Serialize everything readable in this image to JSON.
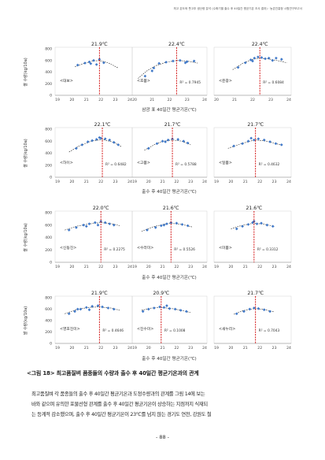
{
  "page_header": "최고 온도와 풋고추 생산량 분석 (수확기별 출수 후 40일간 평균기온 조사 결과) · 농촌진흥청 시험연구보고서",
  "caption": "<그림 18> 최고품질벼 품종들의 수량과 출수 후 40일간 평균기온과의 관계",
  "paragraph_lines": [
    "최고품질벼 각 품종들의 출수 후 40일간 평균기온과 도정수량과의 관계를 그림 14에 보는",
    "바와 같으며 유의한 포물선형 관계를 출수 후 40일간 평균기온이 상승하는 지점까지 식재되",
    "는 등계적 감소했으며, 출수 후 40일간 평균기온이 23℃를 넘지 않는 경기도 연천, 강원도 철"
  ],
  "page_number": "- 88 -",
  "colors": {
    "points": "#3f78c8",
    "trend": "#222222",
    "optimum_line": "#d00000",
    "box": "#c8c8c8"
  },
  "rows": [
    {
      "ylabel": "쌀 수량(kg/10a)",
      "row_title": "삼광 표 40일간 평균기온(℃)",
      "ylim": [
        0,
        800
      ],
      "yticks": [
        0,
        200,
        400,
        600,
        800
      ],
      "panels": [
        {
          "xlim": [
            19,
            24
          ],
          "xticks": [
            19,
            20,
            21,
            22,
            23,
            24
          ],
          "opt_label": "21.9℃",
          "opt": 21.9,
          "variety": "<대보>",
          "r2": "",
          "points": [
            [
              20.4,
              520
            ],
            [
              20.9,
              555
            ],
            [
              21.2,
              575
            ],
            [
              21.5,
              600
            ],
            [
              21.9,
              620
            ],
            [
              22.2,
              560
            ],
            [
              21.7,
              530
            ],
            [
              21.3,
              545
            ]
          ],
          "curve": [
            [
              20.2,
              490
            ],
            [
              20.8,
              545
            ],
            [
              21.4,
              590
            ],
            [
              21.9,
              600
            ],
            [
              22.5,
              560
            ],
            [
              23.2,
              470
            ]
          ]
        },
        {
          "xlim": [
            20,
            24
          ],
          "xticks": [
            20,
            21,
            22,
            23,
            24
          ],
          "opt_label": "22.4℃",
          "opt": 22.4,
          "variety": "<호품>",
          "r2": "R² = 0.7945",
          "points": [
            [
              20.6,
              330
            ],
            [
              21.1,
              470
            ],
            [
              21.4,
              550
            ],
            [
              21.8,
              570
            ],
            [
              22.2,
              590
            ],
            [
              22.6,
              600
            ],
            [
              23.0,
              580
            ],
            [
              22.9,
              560
            ],
            [
              23.4,
              590
            ],
            [
              21.0,
              420
            ]
          ],
          "curve": [
            [
              20.2,
              290
            ],
            [
              20.7,
              420
            ],
            [
              21.2,
              510
            ],
            [
              21.8,
              570
            ],
            [
              22.4,
              600
            ],
            [
              23.0,
              590
            ],
            [
              23.6,
              555
            ]
          ]
        },
        {
          "xlim": [
            20,
            24
          ],
          "xticks": [
            20,
            21,
            22,
            23,
            24
          ],
          "opt_label": "22.4℃",
          "opt": 22.4,
          "variety": "<운광>",
          "r2": "R² = 0.6084",
          "points": [
            [
              21.2,
              480
            ],
            [
              21.6,
              560
            ],
            [
              21.9,
              610
            ],
            [
              22.1,
              640
            ],
            [
              22.3,
              660
            ],
            [
              22.5,
              650
            ],
            [
              22.7,
              630
            ],
            [
              22.9,
              640
            ],
            [
              23.1,
              600
            ],
            [
              23.3,
              640
            ],
            [
              23.6,
              620
            ],
            [
              22.0,
              590
            ]
          ],
          "curve": [
            [
              20.9,
              440
            ],
            [
              21.5,
              560
            ],
            [
              22.0,
              620
            ],
            [
              22.4,
              640
            ],
            [
              22.9,
              625
            ],
            [
              23.5,
              590
            ],
            [
              23.9,
              560
            ]
          ]
        }
      ]
    },
    {
      "ylabel": "쌀 수량(kg/10a)",
      "row_title": "출수 후 40일간 평균기온(℃)",
      "ylim": [
        0,
        800
      ],
      "yticks": [
        0,
        200,
        400,
        600,
        800
      ],
      "panels": [
        {
          "xlim": [
            19,
            24
          ],
          "xticks": [
            19,
            20,
            21,
            22,
            23,
            24
          ],
          "opt_label": "22.1℃",
          "opt": 22.1,
          "variety": "<하이>",
          "r2": "R² = 0.6482",
          "points": [
            [
              20.3,
              480
            ],
            [
              20.7,
              540
            ],
            [
              21.1,
              590
            ],
            [
              21.4,
              610
            ],
            [
              21.7,
              630
            ],
            [
              22.0,
              650
            ],
            [
              22.3,
              640
            ],
            [
              22.6,
              620
            ],
            [
              22.9,
              580
            ],
            [
              23.2,
              540
            ],
            [
              21.9,
              660
            ]
          ],
          "curve": [
            [
              19.8,
              420
            ],
            [
              20.5,
              520
            ],
            [
              21.3,
              600
            ],
            [
              22.1,
              630
            ],
            [
              22.9,
              580
            ],
            [
              23.4,
              510
            ]
          ]
        },
        {
          "xlim": [
            19,
            24
          ],
          "xticks": [
            19,
            20,
            21,
            22,
            23,
            24
          ],
          "opt_label": "21.7℃",
          "opt": 21.7,
          "variety": "<고품>",
          "r2": "R² = 0.5788",
          "points": [
            [
              20.0,
              480
            ],
            [
              20.6,
              560
            ],
            [
              21.0,
              600
            ],
            [
              21.4,
              620
            ],
            [
              21.7,
              640
            ],
            [
              22.1,
              630
            ],
            [
              22.5,
              600
            ],
            [
              22.8,
              570
            ],
            [
              21.2,
              590
            ]
          ],
          "curve": [
            [
              19.7,
              450
            ],
            [
              20.4,
              540
            ],
            [
              21.0,
              600
            ],
            [
              21.7,
              620
            ],
            [
              22.4,
              600
            ],
            [
              23.0,
              540
            ]
          ]
        },
        {
          "xlim": [
            19,
            24
          ],
          "xticks": [
            19,
            20,
            21,
            22,
            23,
            24
          ],
          "opt_label": "21.7℃",
          "opt": 21.7,
          "variety": "<일품>",
          "r2": "R² = 0.4632",
          "points": [
            [
              20.2,
              520
            ],
            [
              20.8,
              560
            ],
            [
              21.2,
              600
            ],
            [
              21.6,
              620
            ],
            [
              21.9,
              640
            ],
            [
              22.3,
              620
            ],
            [
              22.7,
              590
            ],
            [
              23.1,
              560
            ],
            [
              23.5,
              540
            ],
            [
              21.4,
              650
            ]
          ],
          "curve": [
            [
              19.8,
              480
            ],
            [
              20.6,
              550
            ],
            [
              21.3,
              600
            ],
            [
              21.7,
              620
            ],
            [
              22.5,
              600
            ],
            [
              23.4,
              540
            ]
          ]
        }
      ]
    },
    {
      "ylabel": "쌀 수량(kg/10a)",
      "row_title": "출수 후 40일간 평균기온(℃)",
      "ylim": [
        0,
        800
      ],
      "yticks": [
        0,
        200,
        400,
        600,
        800
      ],
      "panels": [
        {
          "xlim": [
            19,
            24
          ],
          "xticks": [
            19,
            20,
            21,
            22,
            23,
            24
          ],
          "opt_label": "22.0℃",
          "opt": 22.0,
          "variety": "<신동진>",
          "r2": "R² = 0.2275",
          "points": [
            [
              19.8,
              520
            ],
            [
              20.3,
              560
            ],
            [
              20.8,
              600
            ],
            [
              21.2,
              620
            ],
            [
              21.6,
              640
            ],
            [
              22.0,
              660
            ],
            [
              22.3,
              640
            ],
            [
              22.6,
              620
            ],
            [
              22.9,
              600
            ],
            [
              21.0,
              580
            ],
            [
              21.8,
              600
            ]
          ],
          "curve": [
            [
              19.5,
              520
            ],
            [
              20.3,
              580
            ],
            [
              21.2,
              620
            ],
            [
              22.0,
              640
            ],
            [
              22.8,
              620
            ],
            [
              23.3,
              590
            ]
          ]
        },
        {
          "xlim": [
            19,
            24
          ],
          "xticks": [
            19,
            20,
            21,
            22,
            23,
            24
          ],
          "opt_label": "21.6℃",
          "opt": 21.6,
          "variety": "<수라미>",
          "r2": "R² = 0.5526",
          "points": [
            [
              19.9,
              520
            ],
            [
              20.5,
              560
            ],
            [
              20.9,
              590
            ],
            [
              21.3,
              620
            ],
            [
              21.6,
              640
            ],
            [
              22.0,
              630
            ],
            [
              22.4,
              610
            ],
            [
              22.8,
              590
            ],
            [
              21.1,
              600
            ]
          ],
          "curve": [
            [
              19.5,
              500
            ],
            [
              20.3,
              570
            ],
            [
              21.0,
              610
            ],
            [
              21.6,
              630
            ],
            [
              22.4,
              610
            ],
            [
              23.1,
              570
            ]
          ]
        },
        {
          "xlim": [
            19,
            24
          ],
          "xticks": [
            19,
            20,
            21,
            22,
            23,
            24
          ],
          "opt_label": "21.6℃",
          "opt": 21.6,
          "variety": "<미품>",
          "r2": "R² = 0.3312",
          "points": [
            [
              20.4,
              540
            ],
            [
              20.8,
              580
            ],
            [
              21.2,
              610
            ],
            [
              21.5,
              640
            ],
            [
              21.8,
              620
            ],
            [
              22.1,
              630
            ],
            [
              22.5,
              600
            ],
            [
              22.9,
              580
            ],
            [
              21.6,
              660
            ]
          ],
          "curve": [
            [
              20.0,
              540
            ],
            [
              20.7,
              590
            ],
            [
              21.3,
              620
            ],
            [
              21.6,
              630
            ],
            [
              22.3,
              615
            ],
            [
              23.0,
              580
            ]
          ]
        }
      ]
    },
    {
      "ylabel": "쌀 수량(kg/10a)",
      "row_title": "출수 후 40일간 평균기온(℃)",
      "ylim": [
        0,
        800
      ],
      "yticks": [
        0,
        200,
        400,
        600,
        800
      ],
      "panels": [
        {
          "xlim": [
            19,
            24
          ],
          "xticks": [
            19,
            20,
            21,
            22,
            23,
            24
          ],
          "opt_label": "21.9℃",
          "opt": 21.9,
          "variety": "<영호진미>",
          "r2": "R² = 0.4646",
          "points": [
            [
              19.8,
              520
            ],
            [
              20.2,
              560
            ],
            [
              20.6,
              600
            ],
            [
              21.0,
              630
            ],
            [
              21.4,
              650
            ],
            [
              21.8,
              660
            ],
            [
              22.1,
              640
            ],
            [
              22.5,
              620
            ],
            [
              22.9,
              600
            ],
            [
              21.2,
              590
            ],
            [
              20.4,
              600
            ]
          ],
          "curve": [
            [
              19.5,
              520
            ],
            [
              20.3,
              590
            ],
            [
              21.1,
              630
            ],
            [
              21.9,
              640
            ],
            [
              22.7,
              620
            ],
            [
              23.3,
              580
            ]
          ]
        },
        {
          "xlim": [
            19,
            24
          ],
          "xticks": [
            19,
            20,
            21,
            22,
            23,
            24
          ],
          "opt_label": "20.9℃",
          "opt": 20.9,
          "variety": "<진수미>",
          "r2": "R² = 0.1008",
          "points": [
            [
              19.6,
              560
            ],
            [
              20.0,
              600
            ],
            [
              20.4,
              620
            ],
            [
              20.8,
              640
            ],
            [
              21.1,
              630
            ],
            [
              21.5,
              610
            ],
            [
              21.9,
              600
            ],
            [
              22.3,
              580
            ],
            [
              22.7,
              560
            ],
            [
              21.3,
              660
            ]
          ],
          "curve": [
            [
              19.5,
              580
            ],
            [
              20.2,
              620
            ],
            [
              20.9,
              630
            ],
            [
              21.7,
              610
            ],
            [
              22.5,
              570
            ],
            [
              23.0,
              540
            ]
          ]
        },
        {
          "xlim": [
            19,
            24
          ],
          "xticks": [
            19,
            20,
            21,
            22,
            23,
            24
          ],
          "opt_label": "21.7℃",
          "opt": 21.7,
          "variety": "<새누리>",
          "r2": "R² = 0.7043",
          "points": [
            [
              20.4,
              520
            ],
            [
              20.9,
              560
            ],
            [
              21.3,
              600
            ],
            [
              21.6,
              620
            ],
            [
              21.9,
              610
            ],
            [
              22.3,
              590
            ],
            [
              22.7,
              560
            ]
          ],
          "curve": [
            [
              20.2,
              510
            ],
            [
              20.8,
              570
            ],
            [
              21.3,
              600
            ],
            [
              21.7,
              610
            ],
            [
              22.3,
              595
            ],
            [
              23.0,
              550
            ]
          ]
        }
      ]
    }
  ],
  "chart_data": {
    "type": "scatter",
    "note_series_from_figure": true,
    "xlabel": "출수 후 40일간 평균기온(℃)",
    "ylabel": "쌀 수량(kg/10a)",
    "ylim": [
      0,
      800
    ]
  }
}
